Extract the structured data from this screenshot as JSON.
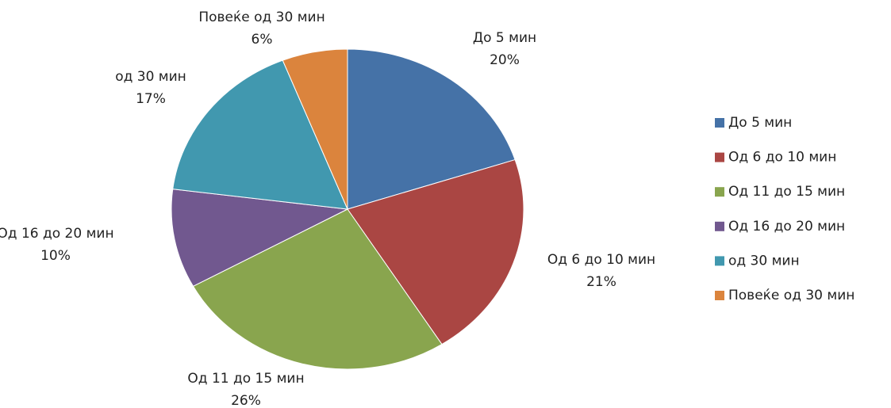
{
  "chart_data": {
    "type": "pie",
    "categories": [
      "До 5 мин",
      "Од 6 до 10 мин",
      "Од 11 до 15 мин",
      "Од 16 до 20 мин",
      "од 30 мин",
      "Повеќе од 30 мин"
    ],
    "values": [
      20,
      21,
      26,
      10,
      17,
      6
    ],
    "value_labels": [
      "20%",
      "21%",
      "26%",
      "10%",
      "17%",
      "6%"
    ],
    "colors": [
      "#4572a7",
      "#aa4643",
      "#89a54e",
      "#71588f",
      "#4198af",
      "#db843d"
    ],
    "legend": "right"
  }
}
